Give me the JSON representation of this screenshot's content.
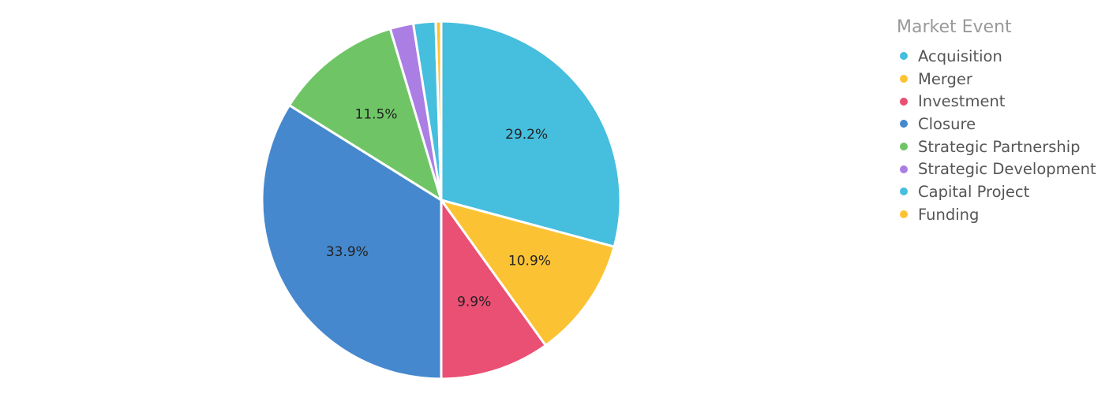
{
  "chart_data": {
    "type": "pie",
    "title": "",
    "legend_title": "Market Event",
    "legend_position": "top-right",
    "slices": [
      {
        "name": "Acquisition",
        "value": 29.2,
        "label": "29.2%",
        "color": "#46BEDE"
      },
      {
        "name": "Merger",
        "value": 10.9,
        "label": "10.9%",
        "color": "#FBC334"
      },
      {
        "name": "Investment",
        "value": 9.9,
        "label": "9.9%",
        "color": "#EA4F74"
      },
      {
        "name": "Closure",
        "value": 33.9,
        "label": "33.9%",
        "color": "#4688CE"
      },
      {
        "name": "Strategic Partnership",
        "value": 11.5,
        "label": "11.5%",
        "color": "#6FC566"
      },
      {
        "name": "Strategic Development",
        "value": 2.1,
        "label": "",
        "color": "#AB7EE3"
      },
      {
        "name": "Capital Project",
        "value": 2.0,
        "label": "",
        "color": "#46BEDE"
      },
      {
        "name": "Funding",
        "value": 0.5,
        "label": "",
        "color": "#FBC334"
      }
    ]
  }
}
